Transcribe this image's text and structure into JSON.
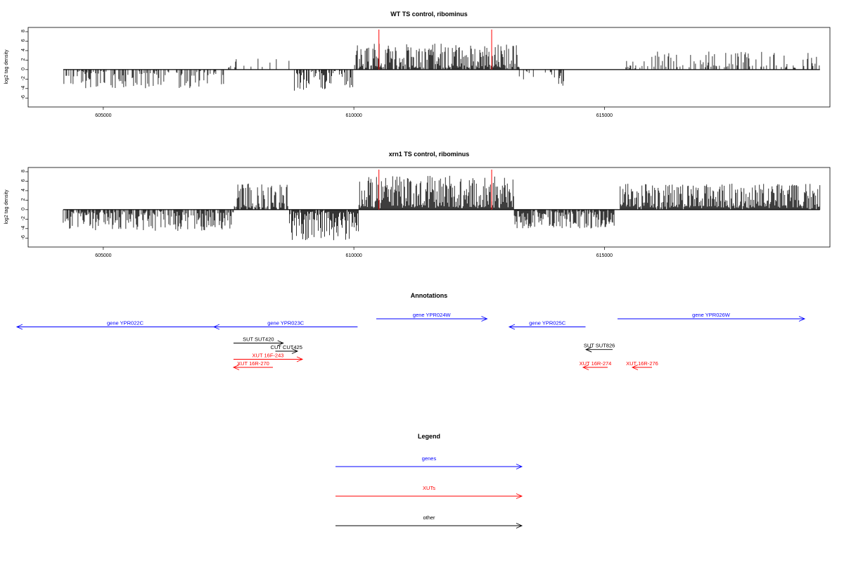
{
  "chart_data": {
    "type": "genome_browser",
    "panels": [
      {
        "title": "WT TS control, ribominus",
        "ylabel": "log2 tag density",
        "ylim": [
          -7,
          8
        ],
        "yticks": [
          "8",
          "6",
          "4",
          "2",
          "0",
          "-2",
          "-4",
          "-6"
        ],
        "xlim": [
          603500,
          619500
        ],
        "xticks": [
          "605000",
          "610000",
          "615000"
        ],
        "red_markers": [
          610500,
          612750
        ],
        "segments": [
          {
            "from": 604200,
            "to": 607400,
            "sign": -1,
            "density": 0.45,
            "max": 4,
            "gap": 150
          },
          {
            "from": 607400,
            "to": 608800,
            "sign": 1,
            "density": 0.08,
            "max": 2.5,
            "gap": 100
          },
          {
            "from": 608800,
            "to": 610000,
            "sign": -1,
            "density": 0.65,
            "max": 4.5,
            "gap": 80
          },
          {
            "from": 610000,
            "to": 613300,
            "sign": 1,
            "density": 0.85,
            "max": 5.5,
            "gap": 50
          },
          {
            "from": 613300,
            "to": 614200,
            "sign": -1,
            "density": 0.3,
            "max": 3.5,
            "gap": 80
          },
          {
            "from": 615400,
            "to": 619300,
            "sign": 1,
            "density": 0.35,
            "max": 3.8,
            "gap": 100
          }
        ]
      },
      {
        "title": "xrn1 TS control, ribominus",
        "ylabel": "log2 tag density",
        "ylim": [
          -7,
          8
        ],
        "yticks": [
          "8",
          "6",
          "4",
          "2",
          "0",
          "-2",
          "-4",
          "-6"
        ],
        "xlim": [
          603500,
          619500
        ],
        "xticks": [
          "605000",
          "610000",
          "615000"
        ],
        "red_markers": [
          610500,
          612750
        ],
        "segments": [
          {
            "from": 604200,
            "to": 607600,
            "sign": -1,
            "density": 0.7,
            "max": 4.5,
            "gap": 60
          },
          {
            "from": 607600,
            "to": 608700,
            "sign": 1,
            "density": 0.75,
            "max": 5.5,
            "gap": 60
          },
          {
            "from": 608700,
            "to": 610100,
            "sign": -1,
            "density": 0.95,
            "max": 6.5,
            "gap": 30
          },
          {
            "from": 610100,
            "to": 613200,
            "sign": 1,
            "density": 1.0,
            "max": 7.2,
            "gap": 30
          },
          {
            "from": 613200,
            "to": 615200,
            "sign": -1,
            "density": 0.85,
            "max": 4.0,
            "gap": 50
          },
          {
            "from": 615300,
            "to": 619300,
            "sign": 1,
            "density": 0.95,
            "max": 5.5,
            "gap": 40
          }
        ]
      }
    ],
    "annotations_title": "Annotations",
    "annotations": [
      {
        "label": "gene YPR022C",
        "start": 603200,
        "end": 607600,
        "strand": "-",
        "kind": "gene",
        "row": 1
      },
      {
        "label": "gene YPR023C",
        "start": 607200,
        "end": 610120,
        "strand": "-",
        "kind": "gene",
        "row": 1
      },
      {
        "label": "gene YPR024W",
        "start": 610500,
        "end": 612750,
        "strand": "+",
        "kind": "gene",
        "row": 0
      },
      {
        "label": "gene YPR025C",
        "start": 613200,
        "end": 614750,
        "strand": "-",
        "kind": "gene",
        "row": 1
      },
      {
        "label": "gene YPR026W",
        "start": 615400,
        "end": 619200,
        "strand": "+",
        "kind": "gene",
        "row": 0
      },
      {
        "label": "SUT SUT420",
        "start": 607600,
        "end": 608610,
        "strand": "+",
        "kind": "other",
        "row": 3
      },
      {
        "label": "CUT CUT425",
        "start": 608450,
        "end": 608900,
        "strand": "+",
        "kind": "other",
        "row": 4
      },
      {
        "label": "SUT SUT826",
        "start": 614760,
        "end": 615300,
        "strand": "-",
        "kind": "other",
        "row": 3.8
      },
      {
        "label": "XUT 16F-243",
        "start": 607600,
        "end": 609000,
        "strand": "+",
        "kind": "xut",
        "row": 5
      },
      {
        "label": "XUT 16R-270",
        "start": 607600,
        "end": 608400,
        "strand": "-",
        "kind": "xut",
        "row": 6
      },
      {
        "label": "XUT 16R-274",
        "start": 614700,
        "end": 615200,
        "strand": "-",
        "kind": "xut",
        "row": 6
      },
      {
        "label": "XUT 16R-276",
        "start": 615700,
        "end": 616100,
        "strand": "-",
        "kind": "xut",
        "row": 6
      }
    ],
    "legend_title": "Legend",
    "legend": [
      {
        "label": "genes",
        "kind": "gene"
      },
      {
        "label": "XUTs",
        "kind": "xut"
      },
      {
        "label": "other",
        "kind": "other"
      }
    ]
  },
  "colors": {
    "gene": "#0000ff",
    "xut": "#ff0000",
    "other": "#000000",
    "marker": "#ff0000"
  }
}
